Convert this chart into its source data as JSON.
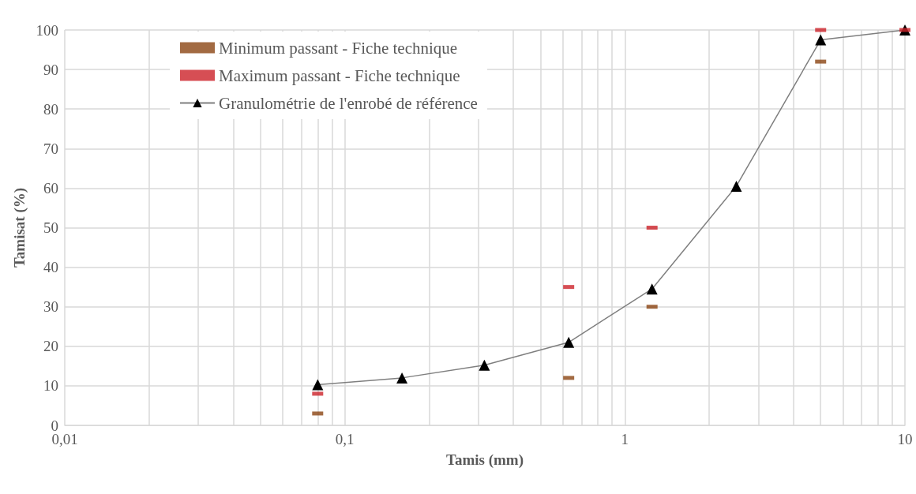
{
  "chart_data": {
    "type": "line",
    "xlabel": "Tamis (mm)",
    "ylabel": "Tamisat (%)",
    "log": "x",
    "xlim": [
      0.01,
      10
    ],
    "xticks": [
      {
        "value": 0.01,
        "label": "0,01"
      },
      {
        "value": 0.1,
        "label": "0,1"
      },
      1,
      10
    ],
    "ylim": [
      0,
      100
    ],
    "yticks": [
      0,
      10,
      20,
      30,
      40,
      50,
      60,
      70,
      80,
      90,
      100
    ],
    "grid": true,
    "legend": "top left",
    "series": [
      {
        "name": "Minimum passant - Fiche technique",
        "type": "scatter",
        "marker": "square",
        "color": "#8b4513",
        "x": [
          0.08,
          0.63,
          1.25,
          5
        ],
        "values": [
          3,
          12,
          30,
          92
        ]
      },
      {
        "name": "Maximum passant - Fiche technique",
        "type": "scatter",
        "marker": "square",
        "color": "#cc2229",
        "x": [
          0.08,
          0.63,
          1.25,
          5,
          10
        ],
        "values": [
          8,
          35,
          50,
          100,
          100
        ]
      },
      {
        "name": "Granulométrie de l'enrobé de référence",
        "marker": "triangle",
        "color": "#7f7f7f",
        "x": [
          0.08,
          0.16,
          0.315,
          0.63,
          1.25,
          2.5,
          5,
          10
        ],
        "values": [
          10.3,
          12,
          15.2,
          21,
          34.5,
          60.5,
          97.5,
          100
        ]
      }
    ]
  }
}
